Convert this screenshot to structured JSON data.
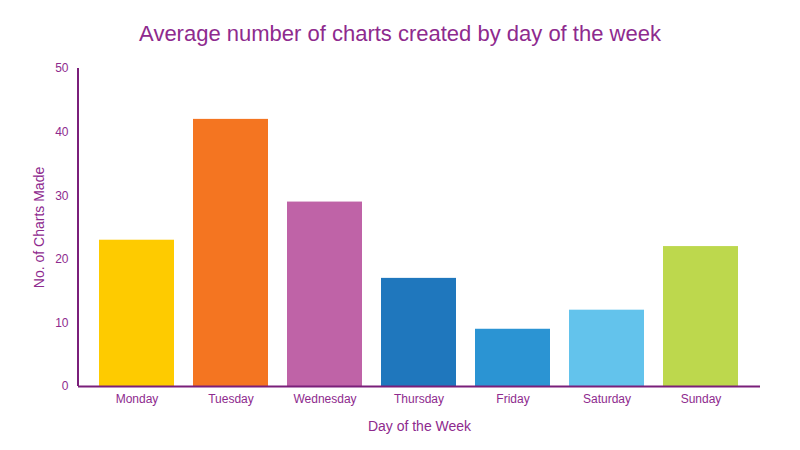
{
  "chart_data": {
    "type": "bar",
    "title": "Average number of charts created by day of the week",
    "x_label": "Day of the Week",
    "y_label": "No. of Charts Made",
    "categories": [
      "Monday",
      "Tuesday",
      "Wednesday",
      "Thursday",
      "Friday",
      "Saturday",
      "Sunday"
    ],
    "values": [
      23,
      42,
      29,
      17,
      9,
      12,
      22
    ],
    "colors": [
      "#fecb00",
      "#f47521",
      "#bf63a7",
      "#1f77bd",
      "#2b94d3",
      "#63c3ec",
      "#bdd84d"
    ],
    "ylim": [
      0,
      50
    ],
    "yticks": [
      0,
      10,
      20,
      30,
      40,
      50
    ],
    "grid": false
  }
}
